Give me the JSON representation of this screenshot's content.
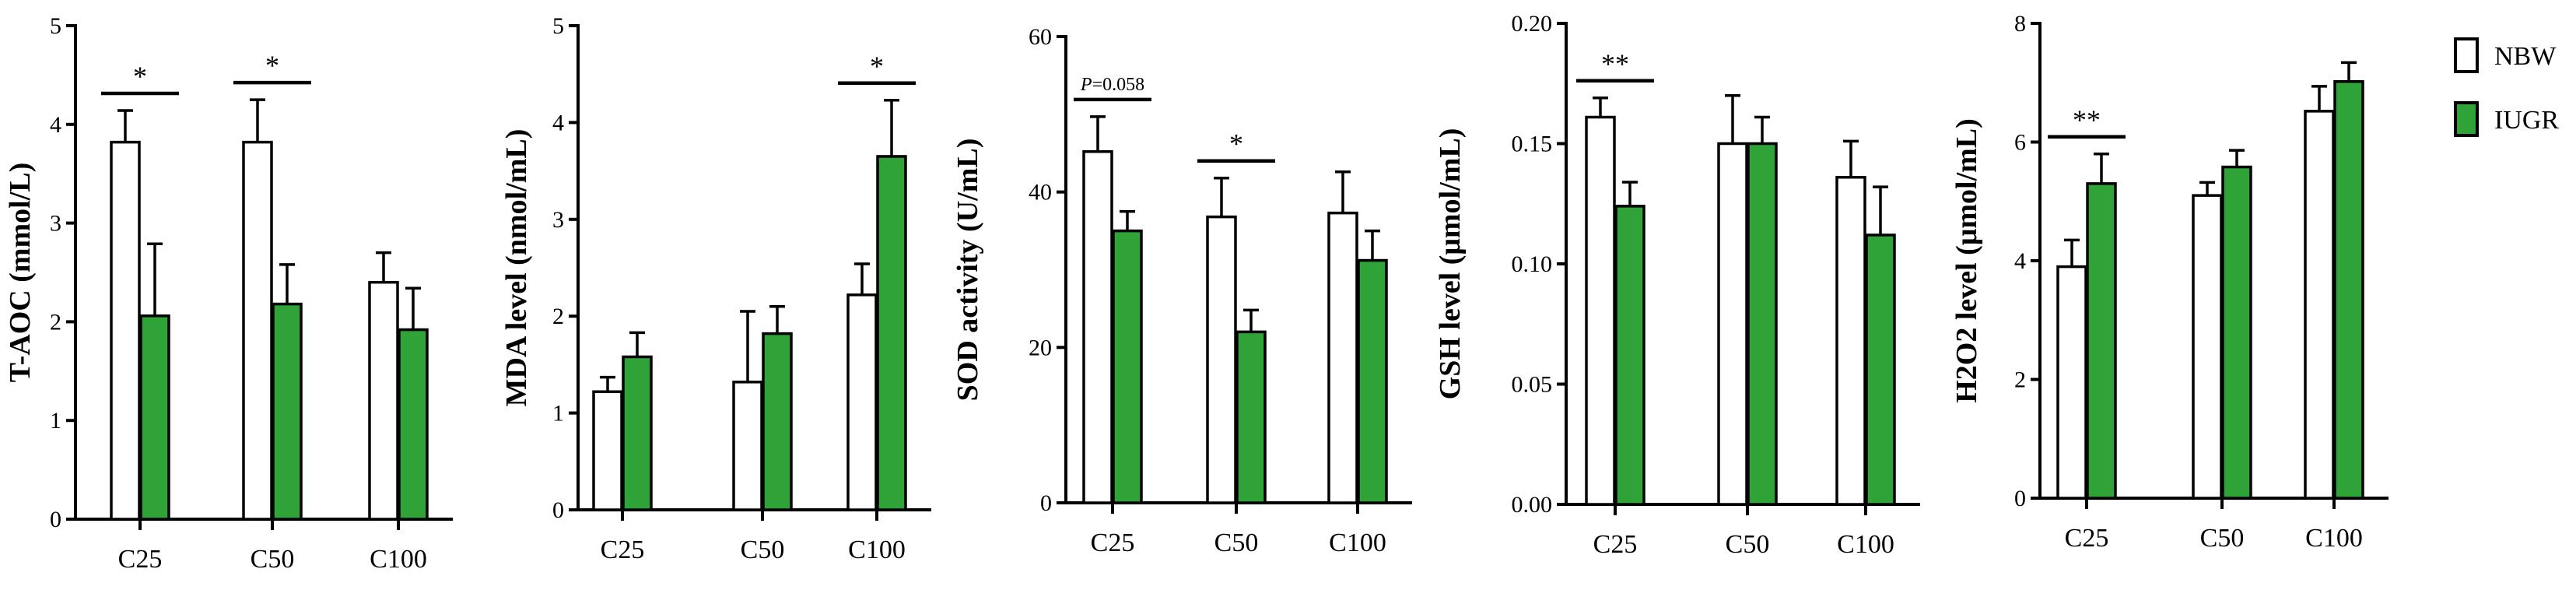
{
  "colors": {
    "nbw_fill": "#ffffff",
    "iugr_fill": "#2fa238",
    "stroke": "#000000"
  },
  "legend": [
    {
      "name": "NBW",
      "color": "#ffffff"
    },
    {
      "name": "IUGR",
      "color": "#2fa238"
    }
  ],
  "chart_data": [
    {
      "type": "bar",
      "ylabel": "T-AOC (mmol/L)",
      "categories": [
        "C25",
        "C50",
        "C100"
      ],
      "ylim": [
        0,
        5
      ],
      "yticks": [
        0,
        1,
        2,
        3,
        4,
        5
      ],
      "series": [
        {
          "name": "NBW",
          "values": [
            3.82,
            3.82,
            2.4
          ],
          "errors": [
            0.32,
            0.43,
            0.3
          ]
        },
        {
          "name": "IUGR",
          "values": [
            2.06,
            2.18,
            1.92
          ],
          "errors": [
            0.73,
            0.4,
            0.42
          ]
        }
      ],
      "annotations": [
        {
          "category": "C25",
          "text": "*"
        },
        {
          "category": "C50",
          "text": "*"
        }
      ]
    },
    {
      "type": "bar",
      "ylabel": "MDA level (nmol/mL)",
      "categories": [
        "C25",
        "C50",
        "C100"
      ],
      "ylim": [
        0,
        5
      ],
      "yticks": [
        0,
        1,
        2,
        3,
        4,
        5
      ],
      "series": [
        {
          "name": "NBW",
          "values": [
            1.22,
            1.32,
            2.22
          ],
          "errors": [
            0.15,
            0.73,
            0.32
          ]
        },
        {
          "name": "IUGR",
          "values": [
            1.58,
            1.82,
            3.65
          ],
          "errors": [
            0.25,
            0.28,
            0.58
          ]
        }
      ],
      "annotations": [
        {
          "category": "C100",
          "text": "*"
        }
      ]
    },
    {
      "type": "bar",
      "ylabel": "SOD activity (U/mL)",
      "categories": [
        "C25",
        "C50",
        "C100"
      ],
      "ylim": [
        0,
        60
      ],
      "yticks": [
        0,
        20,
        40,
        60
      ],
      "series": [
        {
          "name": "NBW",
          "values": [
            45.2,
            36.8,
            37.3
          ],
          "errors": [
            4.5,
            5.0,
            5.3
          ]
        },
        {
          "name": "IUGR",
          "values": [
            35.0,
            22.0,
            31.2
          ],
          "errors": [
            2.5,
            2.8,
            3.8
          ]
        }
      ],
      "annotations": [
        {
          "category": "C25",
          "text_prefix": "P",
          "text": "=0.058"
        },
        {
          "category": "C50",
          "text": "*"
        }
      ]
    },
    {
      "type": "bar",
      "ylabel": "GSH level (μmol/mL)",
      "categories": [
        "C25",
        "C50",
        "C100"
      ],
      "ylim": [
        0,
        0.2
      ],
      "yticks": [
        "0.00",
        "0.05",
        "0.10",
        "0.15",
        "0.20"
      ],
      "series": [
        {
          "name": "NBW",
          "values": [
            0.161,
            0.15,
            0.136
          ],
          "errors": [
            0.008,
            0.02,
            0.015
          ]
        },
        {
          "name": "IUGR",
          "values": [
            0.124,
            0.15,
            0.112
          ],
          "errors": [
            0.01,
            0.011,
            0.02
          ]
        }
      ],
      "annotations": [
        {
          "category": "C25",
          "text": "**"
        }
      ]
    },
    {
      "type": "bar",
      "ylabel": "H2O2 level (μmol/mL)",
      "categories": [
        "C25",
        "C50",
        "C100"
      ],
      "ylim": [
        0,
        8
      ],
      "yticks": [
        0,
        2,
        4,
        6,
        8
      ],
      "series": [
        {
          "name": "NBW",
          "values": [
            3.9,
            5.1,
            6.52
          ],
          "errors": [
            0.45,
            0.22,
            0.42
          ]
        },
        {
          "name": "IUGR",
          "values": [
            5.3,
            5.58,
            7.02
          ],
          "errors": [
            0.5,
            0.28,
            0.32
          ]
        }
      ],
      "annotations": [
        {
          "category": "C25",
          "text": "**"
        }
      ]
    }
  ]
}
